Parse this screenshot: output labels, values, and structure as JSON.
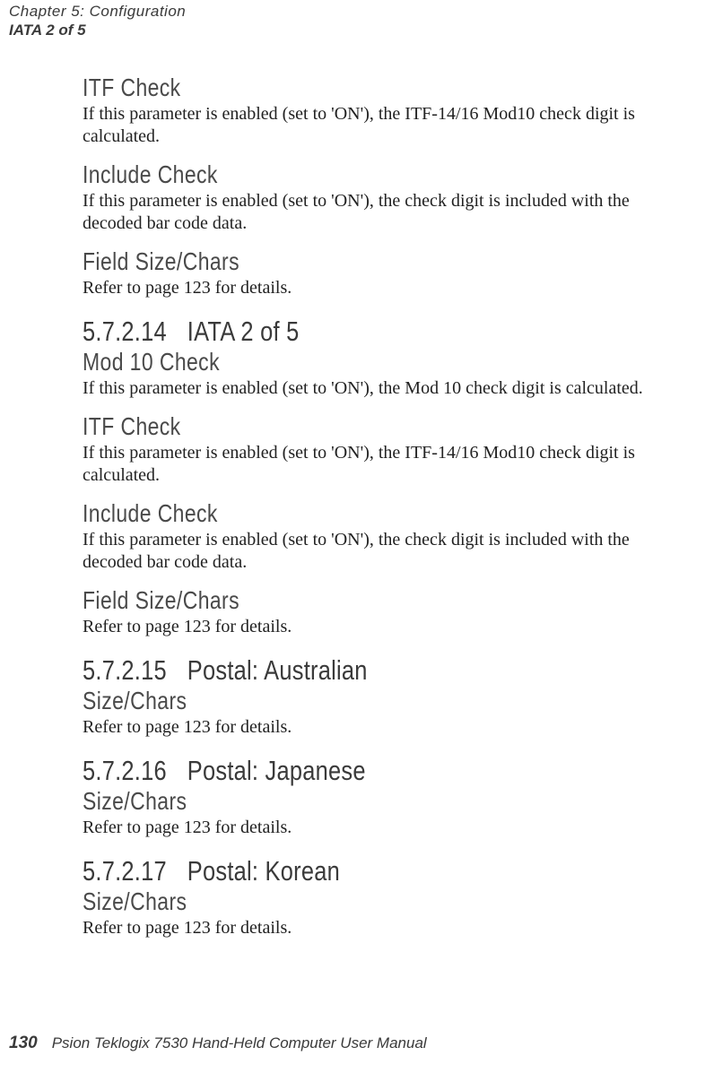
{
  "header": {
    "chapter": "Chapter 5: Configuration",
    "section": "IATA 2 of 5"
  },
  "sections": {
    "itf_check_1": {
      "title": "ITF Check",
      "body": "If this parameter is enabled (set to 'ON'), the ITF-14/16 Mod10 check digit is calculated."
    },
    "include_check_1": {
      "title": "Include Check",
      "body": "If this parameter is enabled (set to 'ON'), the check digit is included with the decoded bar code data."
    },
    "field_size_1": {
      "title": "Field Size/Chars",
      "body": "Refer to page 123 for details."
    },
    "iata": {
      "number": "5.7.2.14",
      "title": "IATA 2 of 5"
    },
    "mod10": {
      "title": "Mod 10 Check",
      "body": "If this parameter is enabled (set to 'ON'), the Mod 10 check digit is calculated."
    },
    "itf_check_2": {
      "title": "ITF Check",
      "body": "If this parameter is enabled (set to 'ON'), the ITF-14/16 Mod10 check digit is calculated."
    },
    "include_check_2": {
      "title": "Include Check",
      "body": "If this parameter is enabled (set to 'ON'), the check digit is included with the decoded bar code data."
    },
    "field_size_2": {
      "title": "Field Size/Chars",
      "body": "Refer to page 123 for details."
    },
    "postal_au": {
      "number": "5.7.2.15",
      "title": "Postal: Australian"
    },
    "size_chars_au": {
      "title": "Size/Chars",
      "body": "Refer to page 123 for details."
    },
    "postal_jp": {
      "number": "5.7.2.16",
      "title": "Postal: Japanese"
    },
    "size_chars_jp": {
      "title": "Size/Chars",
      "body": "Refer to page 123 for details."
    },
    "postal_kr": {
      "number": "5.7.2.17",
      "title": "Postal: Korean"
    },
    "size_chars_kr": {
      "title": "Size/Chars",
      "body": "Refer to page 123 for details."
    }
  },
  "footer": {
    "page": "130",
    "title": "Psion Teklogix 7530 Hand-Held Computer User Manual"
  }
}
